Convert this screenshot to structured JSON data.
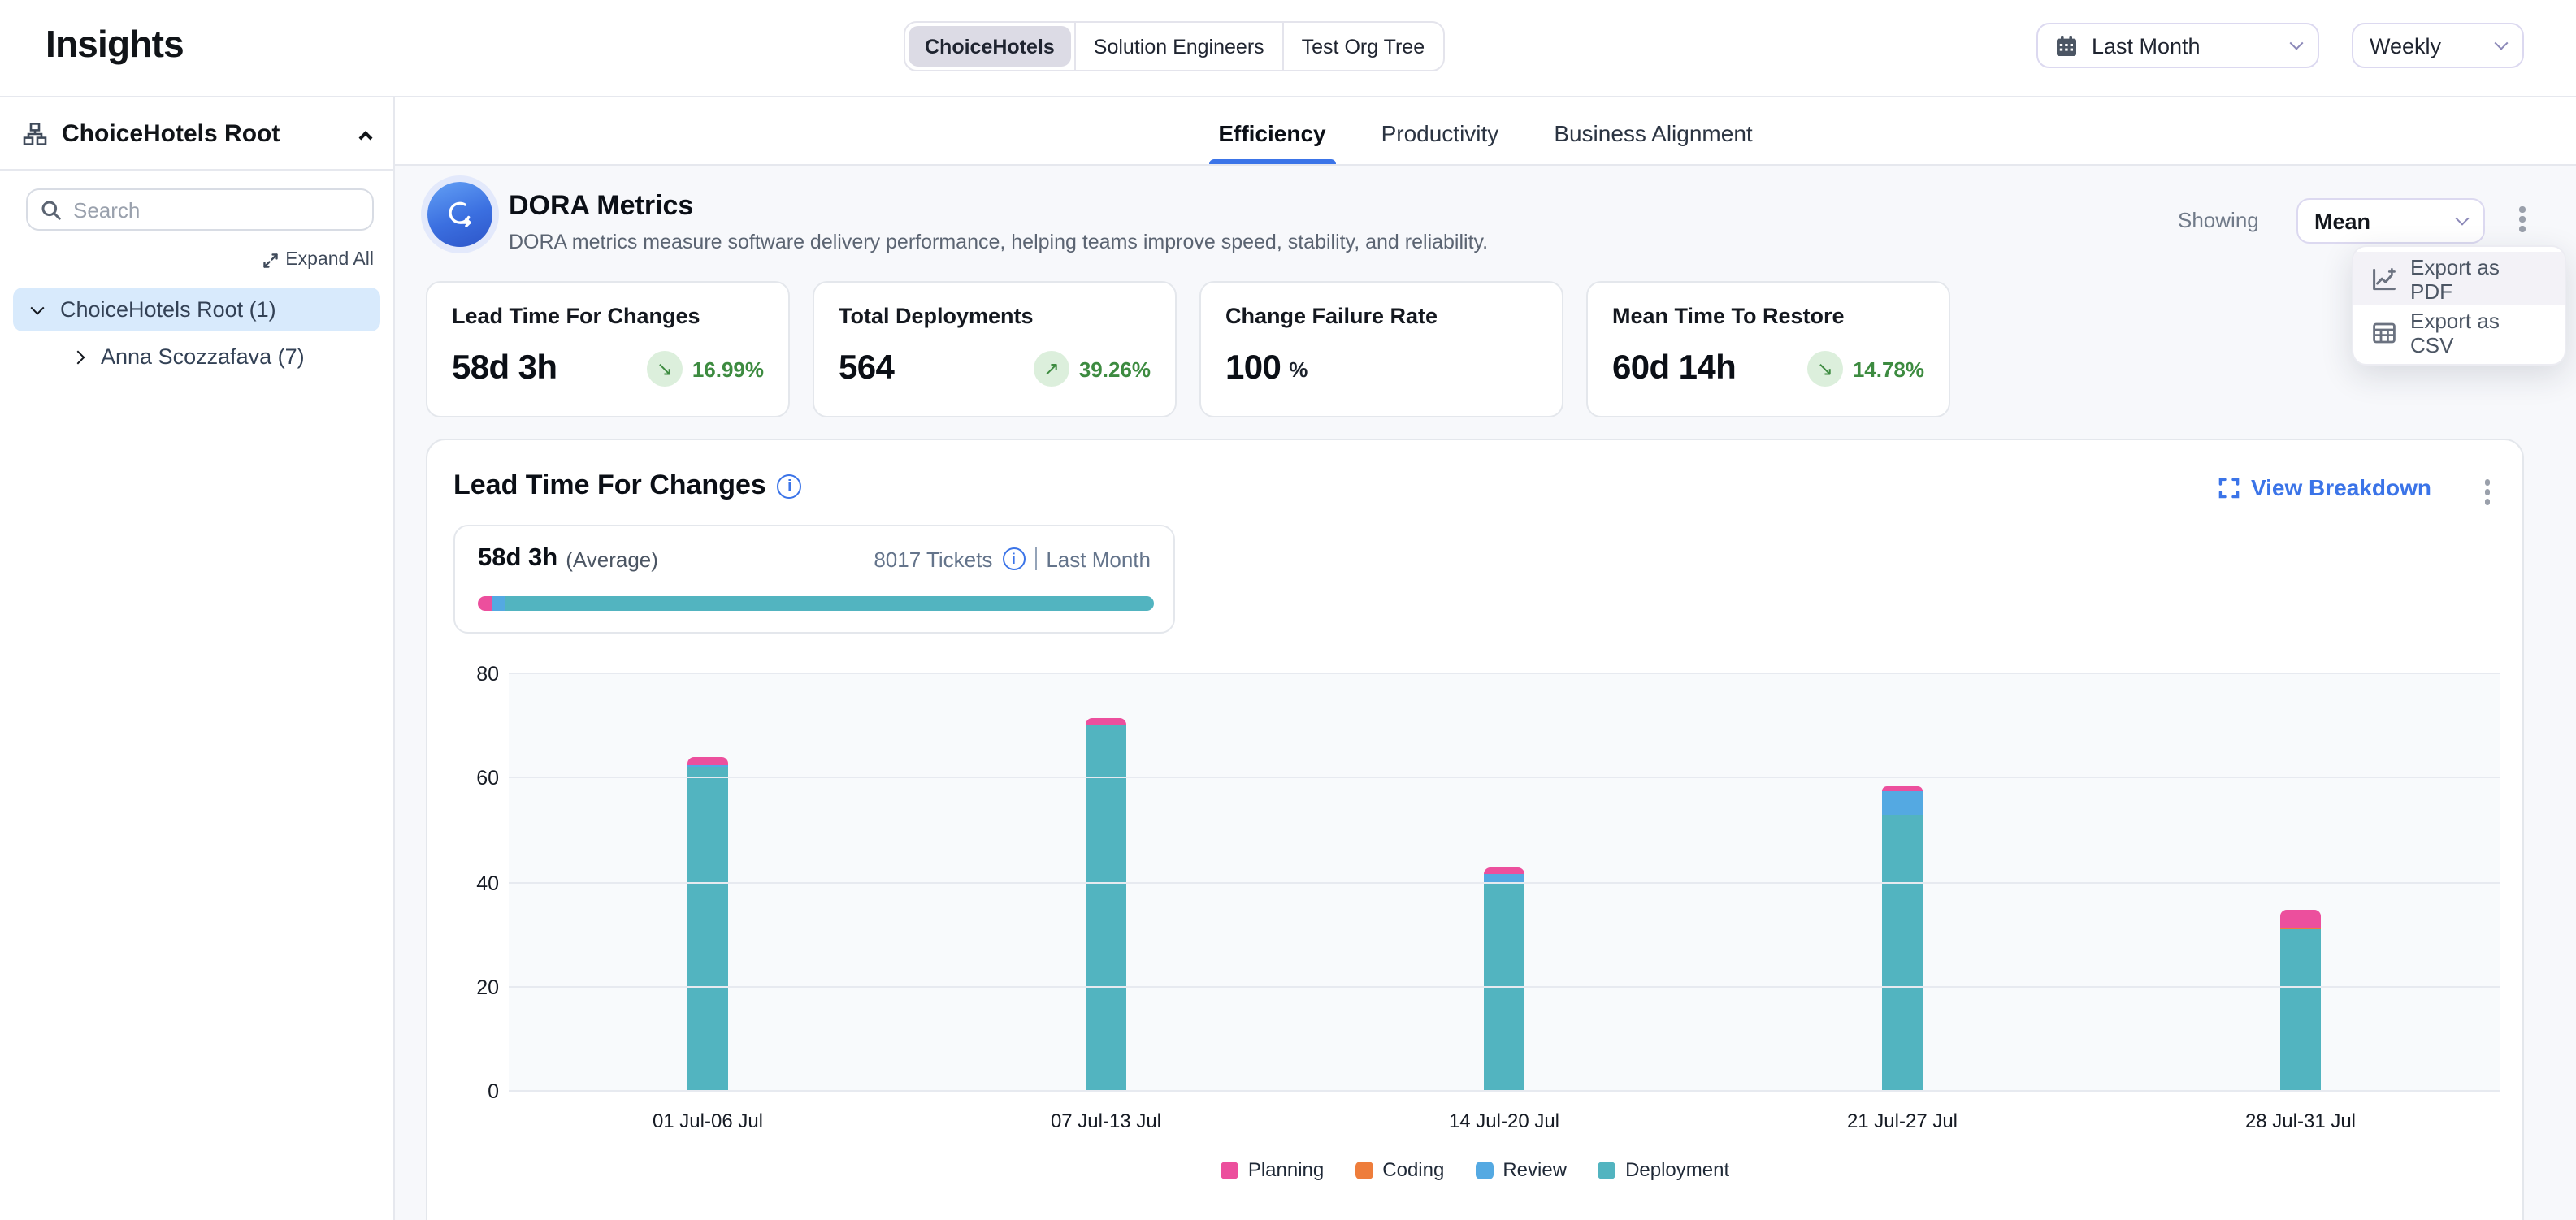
{
  "header": {
    "title": "Insights",
    "org_tabs": [
      {
        "label": "ChoiceHotels",
        "selected": true
      },
      {
        "label": "Solution Engineers",
        "selected": false
      },
      {
        "label": "Test Org Tree",
        "selected": false
      }
    ],
    "date_range_label": "Last Month",
    "granularity_label": "Weekly"
  },
  "sidebar": {
    "header_label": "ChoiceHotels Root",
    "search_placeholder": "Search",
    "expand_all_label": "Expand All",
    "tree": [
      {
        "label": "ChoiceHotels Root (1)",
        "expanded": true,
        "selected": true
      },
      {
        "label": "Anna Scozzafava (7)",
        "expanded": false,
        "selected": false
      }
    ]
  },
  "tabs": [
    {
      "label": "Efficiency",
      "active": true
    },
    {
      "label": "Productivity",
      "active": false
    },
    {
      "label": "Business Alignment",
      "active": false
    }
  ],
  "dora": {
    "title": "DORA Metrics",
    "subtitle": "DORA metrics measure software delivery performance, helping teams improve speed, stability, and reliability.",
    "showing_label": "Showing",
    "showing_value": "Mean"
  },
  "export_menu": {
    "items": [
      {
        "label": "Export as PDF",
        "icon": "chart-line-plus-icon",
        "highlighted": true
      },
      {
        "label": "Export as CSV",
        "icon": "table-icon",
        "highlighted": false
      }
    ]
  },
  "metric_cards": [
    {
      "title": "Lead Time For Changes",
      "value": "58d 3h",
      "delta": "16.99%",
      "delta_arrow": "↘",
      "delta_direction": "down",
      "delta_color": "#3d8b40"
    },
    {
      "title": "Total Deployments",
      "value": "564",
      "delta": "39.26%",
      "delta_arrow": "↗",
      "delta_direction": "up",
      "delta_color": "#3d8b40"
    },
    {
      "title": "Change Failure Rate",
      "value": "100",
      "unit": "%"
    },
    {
      "title": "Mean Time To Restore",
      "value": "60d 14h",
      "delta": "14.78%",
      "delta_arrow": "↘",
      "delta_direction": "down",
      "delta_color": "#3d8b40"
    }
  ],
  "lead_time_section": {
    "title": "Lead Time For Changes",
    "view_breakdown_label": "View Breakdown",
    "average_value": "58d 3h",
    "average_label": "(Average)",
    "tickets_label": "8017 Tickets",
    "period_label": "Last Month",
    "progress": [
      {
        "name": "Planning",
        "pct": 2.1,
        "color": "#ec4f9d"
      },
      {
        "name": "Review",
        "pct": 2.1,
        "color": "#54a9e2"
      },
      {
        "name": "Deployment",
        "pct": 95.8,
        "color": "#52b4c0"
      }
    ]
  },
  "chart_data": {
    "type": "bar",
    "stacked": true,
    "title": "Lead Time For Changes by week",
    "categories": [
      "01 Jul-06 Jul",
      "07 Jul-13 Jul",
      "14 Jul-20 Jul",
      "21 Jul-27 Jul",
      "28 Jul-31 Jul"
    ],
    "series": [
      {
        "name": "Planning",
        "color": "#ec4f9d",
        "values": [
          1.4,
          1.2,
          1.4,
          0.9,
          3.4
        ]
      },
      {
        "name": "Coding",
        "color": "#ee7d3b",
        "values": [
          0,
          0,
          0,
          0,
          0.4
        ]
      },
      {
        "name": "Review",
        "color": "#54a9e2",
        "values": [
          0.4,
          0,
          1.6,
          4.6,
          0
        ]
      },
      {
        "name": "Deployment",
        "color": "#52b4c0",
        "values": [
          62.2,
          70.3,
          40.1,
          52.9,
          31.0
        ]
      }
    ],
    "totals": [
      64.0,
      71.5,
      43.1,
      58.4,
      34.8
    ],
    "xlabel": "",
    "ylabel": "",
    "ylim": [
      0,
      80
    ],
    "yticks": [
      0,
      20,
      40,
      60,
      80
    ],
    "grid": true,
    "legend_position": "bottom",
    "stack_order_bottom_to_top": [
      "Deployment",
      "Coding",
      "Review",
      "Planning"
    ]
  },
  "colors": {
    "accent_blue": "#3b74e8",
    "green": "#3d8b40",
    "green_bg": "#dcefdc",
    "selected_segment_bg": "#dcdbe5",
    "tree_selected_bg": "#d8eafc"
  }
}
